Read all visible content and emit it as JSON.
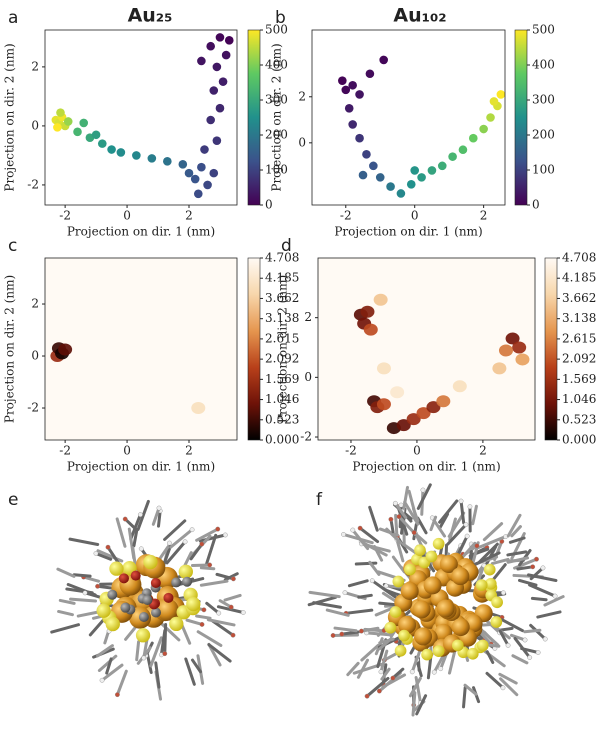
{
  "chart_data": [
    {
      "type": "scatter",
      "panel": "a",
      "title": "Au₂₅",
      "xlabel": "Projection on dir. 1 (nm)",
      "ylabel": "Projection on dir. 2 (nm)",
      "xlim": [
        -2.65,
        3.55
      ],
      "ylim": [
        -2.68,
        3.25
      ],
      "xticks": [
        -2,
        0,
        2
      ],
      "yticks": [
        -2,
        0,
        2
      ],
      "colormap": "viridis",
      "clim": [
        0,
        500
      ],
      "cticks": [
        0,
        100,
        200,
        300,
        400,
        500
      ],
      "x": [
        -2.3,
        -2.2,
        -2.1,
        -2.0,
        -2.25,
        -2.15,
        -1.9,
        -1.6,
        -1.4,
        -1.2,
        -1.0,
        -0.8,
        -0.5,
        -0.2,
        0.3,
        0.8,
        1.3,
        1.8,
        2.0,
        2.2,
        2.4,
        2.6,
        2.8,
        2.5,
        2.9,
        2.7,
        3.0,
        2.8,
        3.1,
        2.9,
        3.2,
        2.7,
        3.0,
        3.3,
        2.4,
        2.3
      ],
      "y": [
        0.2,
        0.1,
        0.3,
        0.0,
        -0.05,
        0.45,
        0.15,
        -0.2,
        0.1,
        -0.4,
        -0.3,
        -0.6,
        -0.8,
        -0.9,
        -1.0,
        -1.1,
        -1.2,
        -1.3,
        -1.6,
        -1.8,
        -1.4,
        -2.0,
        -1.6,
        -0.8,
        -0.5,
        0.2,
        0.6,
        1.2,
        1.5,
        2.0,
        2.4,
        2.7,
        3.0,
        2.9,
        2.2,
        -2.3
      ],
      "c": [
        480,
        470,
        490,
        460,
        500,
        450,
        420,
        330,
        320,
        300,
        280,
        270,
        250,
        240,
        230,
        210,
        190,
        160,
        140,
        130,
        120,
        110,
        100,
        90,
        80,
        70,
        60,
        50,
        45,
        35,
        25,
        20,
        10,
        5,
        30,
        115
      ]
    },
    {
      "type": "scatter",
      "panel": "b",
      "title": "Au₁₀₂",
      "xlabel": "Projection on dir. 1 (nm)",
      "ylabel": "Projection on dir. 2 (nm)",
      "xlim": [
        -2.98,
        2.62
      ],
      "ylim": [
        -2.7,
        4.9
      ],
      "xticks": [
        -2,
        0,
        2
      ],
      "yticks": [
        0,
        2
      ],
      "colormap": "viridis",
      "clim": [
        0,
        500
      ],
      "cticks": [
        0,
        100,
        200,
        300,
        400,
        500
      ],
      "x": [
        -2.0,
        -2.1,
        -1.8,
        -1.6,
        -1.3,
        -0.9,
        -1.9,
        -1.8,
        -1.6,
        -1.4,
        -1.2,
        -1.0,
        -0.7,
        -0.4,
        -0.1,
        0.2,
        0.5,
        0.8,
        1.1,
        1.4,
        1.7,
        2.0,
        2.2,
        2.4,
        2.5,
        2.3,
        0.0,
        -1.5
      ],
      "y": [
        2.3,
        2.7,
        2.5,
        2.1,
        3.0,
        3.6,
        1.5,
        0.8,
        0.2,
        -0.5,
        -1.0,
        -1.5,
        -1.9,
        -2.2,
        -1.8,
        -1.5,
        -1.2,
        -1.0,
        -0.6,
        -0.3,
        0.2,
        0.6,
        1.1,
        1.6,
        2.1,
        1.8,
        -1.2,
        -1.4
      ],
      "c": [
        10,
        5,
        20,
        30,
        15,
        8,
        40,
        60,
        80,
        100,
        130,
        160,
        200,
        230,
        250,
        270,
        290,
        310,
        330,
        350,
        380,
        410,
        440,
        470,
        500,
        480,
        260,
        150
      ]
    },
    {
      "type": "heatmap",
      "panel": "c",
      "xlabel": "Projection on dir. 1 (nm)",
      "ylabel": "Projection on dir. 2 (nm)",
      "xlim": [
        -2.65,
        3.55
      ],
      "ylim": [
        -3.23,
        3.77
      ],
      "xticks": [
        -2,
        0,
        2
      ],
      "yticks": [
        -2,
        0,
        2
      ],
      "colormap": "heat",
      "clim": [
        0,
        4.708
      ],
      "cticks": [
        {
          "value": 0,
          "label": "0.000"
        },
        0.523,
        1.046,
        1.569,
        2.092,
        2.615,
        3.138,
        3.662,
        4.185,
        4.708
      ],
      "x": [
        -2.25,
        -2.2,
        -2.1,
        -2.0,
        2.3
      ],
      "y": [
        0.0,
        0.3,
        0.1,
        0.25,
        -2.0
      ],
      "c": [
        1.5,
        0.5,
        0.2,
        0.8,
        4.0
      ]
    },
    {
      "type": "heatmap",
      "panel": "d",
      "xlabel": "Projection on dir. 1 (nm)",
      "ylabel": "Projection on dir. 2 (nm)",
      "xlim": [
        -3.0,
        3.58
      ],
      "ylim": [
        -2.1,
        4.0
      ],
      "xticks": [
        -2,
        0,
        2
      ],
      "yticks": [
        -2,
        0,
        2
      ],
      "colormap": "heat",
      "clim": [
        0,
        4.708
      ],
      "cticks": [
        {
          "value": 0,
          "label": "0.000"
        },
        0.523,
        1.046,
        1.569,
        2.092,
        2.615,
        3.138,
        3.662,
        4.185,
        4.708
      ],
      "x": [
        -1.7,
        -1.5,
        -1.6,
        -1.4,
        -1.1,
        -1.3,
        -1.2,
        -1.0,
        -0.7,
        -0.4,
        -0.1,
        0.2,
        0.5,
        0.8,
        2.9,
        3.1,
        2.7,
        2.5,
        3.2,
        -1.0,
        -0.6,
        1.3
      ],
      "y": [
        2.1,
        2.2,
        1.8,
        1.6,
        2.6,
        -0.8,
        -1.0,
        -0.9,
        -1.7,
        -1.6,
        -1.4,
        -1.2,
        -1.0,
        -0.8,
        1.3,
        1.0,
        0.9,
        0.3,
        0.6,
        0.3,
        -0.5,
        -0.3
      ],
      "c": [
        0.8,
        1.2,
        1.0,
        2.0,
        3.5,
        0.6,
        1.2,
        2.0,
        0.5,
        0.9,
        1.5,
        2.0,
        1.3,
        2.5,
        1.0,
        1.5,
        2.5,
        3.5,
        3.0,
        4.0,
        4.2,
        4.0
      ]
    }
  ],
  "images": [
    {
      "panel": "e"
    },
    {
      "panel": "f"
    }
  ]
}
